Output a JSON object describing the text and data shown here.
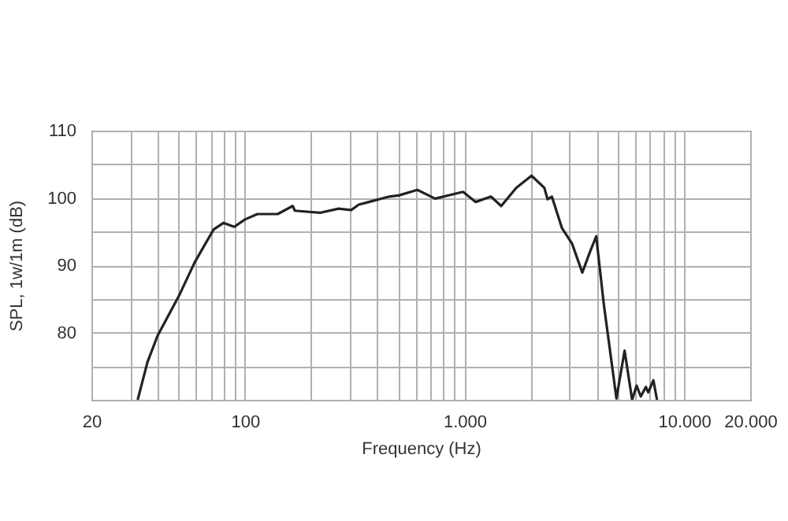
{
  "chart_data": {
    "type": "line",
    "xlabel": "Frequency (Hz)",
    "ylabel": "SPL, 1w/1m (dB)",
    "x": [
      32.5,
      36,
      40,
      50,
      59,
      72,
      80,
      89.5,
      100,
      114,
      141,
      165,
      169,
      221,
      267,
      305,
      330,
      367,
      454,
      506,
      610,
      735,
      985,
      1125,
      1320,
      1470,
      1720,
      2020,
      2310,
      2390,
      2500,
      2780,
      3090,
      3440,
      3730,
      3980,
      4310,
      4920,
      5360,
      5800,
      6080,
      6350,
      6700,
      6870,
      7250,
      7530
    ],
    "series": [
      {
        "color": "#222222",
        "values": [
          70,
          75.6,
          79.5,
          85.4,
          90.4,
          95.3,
          96.3,
          95.7,
          96.8,
          97.6,
          97.6,
          98.8,
          98.1,
          97.8,
          98.4,
          98.2,
          99,
          99.4,
          100.2,
          100.4,
          101.2,
          99.9,
          100.9,
          99.4,
          100.2,
          98.8,
          101.5,
          103.3,
          101.5,
          99.8,
          100.2,
          95.5,
          93.2,
          88.9,
          92,
          94.3,
          84.2,
          70.2,
          77.3,
          70,
          72.1,
          70.5,
          71.9,
          71.1,
          72.9,
          70
        ]
      }
    ],
    "log": "x",
    "xlim": [
      20,
      20000
    ],
    "xticks": [
      20,
      {
        "value": 30,
        "label": null
      },
      {
        "value": 40,
        "label": null
      },
      {
        "value": 50,
        "label": null
      },
      {
        "value": 60,
        "label": null
      },
      {
        "value": 70,
        "label": null
      },
      {
        "value": 80,
        "label": null
      },
      {
        "value": 90,
        "label": null
      },
      100,
      {
        "value": 200,
        "label": null
      },
      {
        "value": 300,
        "label": null
      },
      {
        "value": 400,
        "label": null
      },
      {
        "value": 500,
        "label": null
      },
      {
        "value": 600,
        "label": null
      },
      {
        "value": 700,
        "label": null
      },
      {
        "value": 800,
        "label": null
      },
      {
        "value": 900,
        "label": null
      },
      {
        "value": 1000,
        "label": "1.000"
      },
      {
        "value": 2000,
        "label": null
      },
      {
        "value": 3000,
        "label": null
      },
      {
        "value": 4000,
        "label": null
      },
      {
        "value": 5000,
        "label": null
      },
      {
        "value": 6000,
        "label": null
      },
      {
        "value": 7000,
        "label": null
      },
      {
        "value": 8000,
        "label": null
      },
      {
        "value": 9000,
        "label": null
      },
      {
        "value": 10000,
        "label": "10.000"
      },
      {
        "value": 20000,
        "label": "20.000"
      }
    ],
    "ylim": [
      70,
      110
    ],
    "yticks": [
      {
        "value": 70,
        "label": null
      },
      {
        "value": 75,
        "label": null
      },
      80,
      {
        "value": 85,
        "label": null
      },
      90,
      {
        "value": 95,
        "label": null
      },
      100,
      {
        "value": 105,
        "label": null
      },
      110
    ],
    "grid": true,
    "marker": "none",
    "line_style": "solid"
  }
}
